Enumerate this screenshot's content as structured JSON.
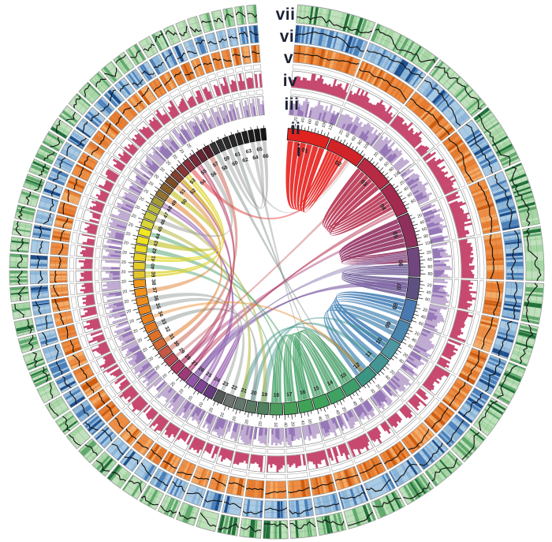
{
  "figure": {
    "description": "Circular genome synteny (circos) figure with seven concentric tracks and ribbon links",
    "ring_labels": {
      "i": "i",
      "ii": "ii",
      "iii": "iii",
      "iv": "iv",
      "v": "v",
      "vi": "vi",
      "vii": "vii"
    }
  },
  "chart_data": {
    "type": "circos-genome",
    "seed": 1234,
    "legend_position": "top-gap-radial-column",
    "tracks": [
      {
        "id": "i",
        "label": "i",
        "kind": "ideogram"
      },
      {
        "id": "ii",
        "label": "ii",
        "kind": "scale-ticks",
        "tick_mb": 10,
        "label_mb": 20,
        "tick_labels_seen": [
          20,
          40,
          60,
          80,
          100
        ]
      },
      {
        "id": "iii",
        "label": "iii",
        "kind": "histogram",
        "bar_color": "#9678b8",
        "base_color": "#c0abd2",
        "bg": "#ffffff"
      },
      {
        "id": "iv",
        "label": "iv",
        "kind": "histogram",
        "bar_color": "#c7496f",
        "base_color": "#c7496f",
        "bg": "#ffffff"
      },
      {
        "id": "v",
        "label": "v",
        "kind": "heatmap-line",
        "bg": "#ef8d42",
        "shades": [
          "#e2701f",
          "#f6b26f",
          "#cf5c10"
        ],
        "line_color": "#141414"
      },
      {
        "id": "vi",
        "label": "vi",
        "kind": "heatmap-line",
        "bg": "#a9cbe5",
        "shades": [
          "#74a6d1",
          "#3a73b4",
          "#1d4e8d"
        ],
        "line_color": "#141414"
      },
      {
        "id": "vii",
        "label": "vii",
        "kind": "heatmap-line",
        "bg": "#bfe1bc",
        "shades": [
          "#90cd90",
          "#4fa05f",
          "#20703a"
        ],
        "line_color": "#141414"
      }
    ],
    "chromosomes": [
      [
        "01",
        128,
        "#e0231f"
      ],
      [
        "02",
        112,
        "#d02429"
      ],
      [
        "03",
        104,
        "#b72a44"
      ],
      [
        "04",
        100,
        "#a32b50"
      ],
      [
        "05",
        102,
        "#8e2f5c"
      ],
      [
        "06",
        88,
        "#70467f"
      ],
      [
        "07",
        66,
        "#5e5181"
      ],
      [
        "08",
        66,
        "#4a78b0"
      ],
      [
        "09",
        64,
        "#4a86ae"
      ],
      [
        "10",
        56,
        "#4e96a2"
      ],
      [
        "11",
        52,
        "#439693"
      ],
      [
        "12",
        56,
        "#3c9582"
      ],
      [
        "13",
        50,
        "#3f9c6b"
      ],
      [
        "14",
        48,
        "#40a162"
      ],
      [
        "15",
        46,
        "#3fa35b"
      ],
      [
        "16",
        44,
        "#40a256"
      ],
      [
        "17",
        42,
        "#46a058"
      ],
      [
        "18",
        40,
        "#4b9b5e"
      ],
      [
        "19",
        34,
        "#4f7f5e"
      ],
      [
        "20",
        32,
        "#5b7a64"
      ],
      [
        "21",
        31,
        "#65766c"
      ],
      [
        "22",
        30,
        "#6d746f"
      ],
      [
        "23",
        28,
        "#535a57"
      ],
      [
        "24",
        30,
        "#663a7d"
      ],
      [
        "25",
        28,
        "#7f4496"
      ],
      [
        "26",
        27,
        "#9156a8"
      ],
      [
        "27",
        28,
        "#9c3a78"
      ],
      [
        "28",
        27,
        "#ae3a64"
      ],
      [
        "29",
        26,
        "#bb4752"
      ],
      [
        "30",
        26,
        "#c65843"
      ],
      [
        "31",
        26,
        "#d36832"
      ],
      [
        "32",
        25,
        "#dc7229"
      ],
      [
        "33",
        25,
        "#e27a24"
      ],
      [
        "34",
        25,
        "#e68121"
      ],
      [
        "35",
        24,
        "#ea871f"
      ],
      [
        "36",
        24,
        "#ed8d1d"
      ],
      [
        "37",
        24,
        "#f0921b"
      ],
      [
        "38",
        23,
        "#f29719"
      ],
      [
        "39",
        23,
        "#e2c52e"
      ],
      [
        "40",
        23,
        "#e5cc2b"
      ],
      [
        "41",
        23,
        "#e9d329"
      ],
      [
        "42",
        22,
        "#ecda27"
      ],
      [
        "43",
        22,
        "#efe125"
      ],
      [
        "44",
        22,
        "#f1e723"
      ],
      [
        "45",
        22,
        "#d9d437"
      ],
      [
        "46",
        22,
        "#cac83d"
      ],
      [
        "47",
        21,
        "#babb43"
      ],
      [
        "48",
        21,
        "#a59b3a"
      ],
      [
        "49",
        21,
        "#927232"
      ],
      [
        "50",
        21,
        "#875f2b"
      ],
      [
        "51",
        21,
        "#7c4c26"
      ],
      [
        "52",
        21,
        "#84402f"
      ],
      [
        "53",
        21,
        "#8a3737"
      ],
      [
        "54",
        21,
        "#8a2e3e"
      ],
      [
        "55",
        21,
        "#792938"
      ],
      [
        "56",
        20,
        "#672431"
      ],
      [
        "57",
        20,
        "#571f2b"
      ],
      [
        "58",
        17,
        "#333333"
      ],
      [
        "59",
        17,
        "#2f2f2f"
      ],
      [
        "60",
        16,
        "#2b2b2b"
      ],
      [
        "61",
        16,
        "#272727"
      ],
      [
        "62",
        16,
        "#232323"
      ],
      [
        "63",
        15,
        "#1f1f1f"
      ],
      [
        "64",
        15,
        "#1b1b1b"
      ],
      [
        "65",
        15,
        "#171717"
      ],
      [
        "66",
        15,
        "#141414"
      ]
    ],
    "links": [
      [
        "01",
        0.02,
        0.98,
        "02",
        0.03,
        0.55,
        "#e5201d",
        0.9,
        6
      ],
      [
        "02",
        0.62,
        0.72,
        "54",
        0.1,
        0.8,
        "#e5201d",
        0.45,
        1
      ],
      [
        "03",
        0.03,
        0.97,
        "04",
        0.03,
        0.72,
        "#b52d4d",
        0.88,
        6
      ],
      [
        "04",
        0.76,
        0.92,
        "27",
        0.15,
        0.75,
        "#b52d4d",
        0.5,
        2
      ],
      [
        "05",
        0.03,
        0.97,
        "06",
        0.04,
        0.5,
        "#8f3060",
        0.88,
        6
      ],
      [
        "05",
        0.2,
        0.3,
        "28",
        0.2,
        0.8,
        "#a83a74",
        0.45,
        1
      ],
      [
        "06",
        0.55,
        0.97,
        "07",
        0.05,
        0.95,
        "#6a5694",
        0.82,
        5
      ],
      [
        "07",
        0.3,
        0.6,
        "26",
        0.1,
        0.9,
        "#7d5ea4",
        0.6,
        2
      ],
      [
        "08",
        0.05,
        0.6,
        "10",
        0.1,
        0.95,
        "#3f7ab3",
        0.85,
        3
      ],
      [
        "08",
        0.65,
        0.95,
        "11",
        0.15,
        0.85,
        "#4583b8",
        0.7,
        2
      ],
      [
        "09",
        0.1,
        0.9,
        "12",
        0.1,
        0.9,
        "#4a88b4",
        0.72,
        3
      ],
      [
        "12",
        0.3,
        0.6,
        "21",
        0.2,
        0.8,
        "#3f948e",
        0.5,
        1
      ],
      [
        "10",
        0.3,
        0.5,
        "19",
        0.2,
        0.8,
        "#3f948e",
        0.45,
        1
      ],
      [
        "11",
        0.3,
        0.6,
        "20",
        0.2,
        0.7,
        "#3f948e",
        0.5,
        1
      ],
      [
        "13",
        0.05,
        0.95,
        "16",
        0.05,
        0.95,
        "#3f9e63",
        0.8,
        5
      ],
      [
        "14",
        0.08,
        0.92,
        "17",
        0.08,
        0.92,
        "#3f9e63",
        0.75,
        4
      ],
      [
        "15",
        0.08,
        0.92,
        "18",
        0.08,
        0.9,
        "#3f9e63",
        0.75,
        4
      ],
      [
        "16",
        0.35,
        0.55,
        "42",
        0.15,
        0.85,
        "#4aa06a",
        0.5,
        1
      ],
      [
        "17",
        0.35,
        0.5,
        "44",
        0.2,
        0.8,
        "#4aa06a",
        0.5,
        1
      ],
      [
        "18",
        0.45,
        0.6,
        "40",
        0.2,
        0.8,
        "#4aa06a",
        0.45,
        1
      ],
      [
        "13",
        0.45,
        0.52,
        "58",
        0.1,
        0.9,
        "#6a7a70",
        0.4,
        1
      ],
      [
        "14",
        0.5,
        0.56,
        "61",
        0.1,
        0.9,
        "#6a7a70",
        0.4,
        1
      ],
      [
        "15",
        0.5,
        0.55,
        "64",
        0.1,
        0.9,
        "#8a8a8a",
        0.4,
        1
      ],
      [
        "19",
        0.3,
        0.7,
        "47",
        0.2,
        0.8,
        "#b0b344",
        0.5,
        1
      ],
      [
        "20",
        0.3,
        0.7,
        "33",
        0.2,
        0.8,
        "#8e9894",
        0.5,
        1
      ],
      [
        "21",
        0.3,
        0.7,
        "45",
        0.2,
        0.8,
        "#b5b73e",
        0.55,
        1
      ],
      [
        "22",
        0.3,
        0.7,
        "36",
        0.2,
        0.8,
        "#98a09c",
        0.5,
        1
      ],
      [
        "23",
        0.3,
        0.7,
        "35",
        0.2,
        0.8,
        "#98a09c",
        0.5,
        1
      ],
      [
        "24",
        0.1,
        0.9,
        "26",
        0.15,
        0.9,
        "#8d4fa8",
        0.7,
        3
      ],
      [
        "25",
        0.15,
        0.85,
        "48",
        0.1,
        0.9,
        "#9055aa",
        0.6,
        2
      ],
      [
        "26",
        0.3,
        0.8,
        "06",
        0.12,
        0.4,
        "#a393c2",
        0.55,
        3
      ],
      [
        "27",
        0.15,
        0.7,
        "52",
        0.1,
        0.9,
        "#a83a74",
        0.6,
        2
      ],
      [
        "28",
        0.2,
        0.8,
        "55",
        0.1,
        0.9,
        "#b43a5e",
        0.6,
        2
      ],
      [
        "29",
        0.25,
        0.6,
        "03",
        0.35,
        0.45,
        "#c04a50",
        0.4,
        1
      ],
      [
        "30",
        0.2,
        0.8,
        "57",
        0.1,
        0.9,
        "#c65843",
        0.5,
        1
      ],
      [
        "31",
        0.2,
        0.8,
        "49",
        0.1,
        0.9,
        "#e08030",
        0.55,
        1
      ],
      [
        "34",
        0.3,
        0.7,
        "12",
        0.35,
        0.55,
        "#e8872a",
        0.45,
        1
      ],
      [
        "37",
        0.2,
        0.8,
        "51",
        0.1,
        0.9,
        "#e08030",
        0.5,
        1
      ],
      [
        "39",
        0.1,
        0.9,
        "53",
        0.1,
        0.9,
        "#ddd32e",
        0.75,
        2
      ],
      [
        "41",
        0.1,
        0.9,
        "52",
        0.3,
        0.9,
        "#e3d92c",
        0.75,
        2
      ],
      [
        "43",
        0.1,
        0.9,
        "50",
        0.1,
        0.9,
        "#c9c83c",
        0.7,
        1
      ],
      [
        "46",
        0.2,
        0.8,
        "56",
        0.1,
        0.9,
        "#9b9b9b",
        0.5,
        1
      ],
      [
        "59",
        0.1,
        0.9,
        "65",
        0.1,
        0.9,
        "#9b9b9b",
        0.45,
        1
      ],
      [
        "60",
        0.1,
        0.9,
        "66",
        0.1,
        0.9,
        "#8a8a8a",
        0.45,
        1
      ],
      [
        "62",
        0.1,
        0.9,
        "02",
        0.75,
        0.78,
        "#9b9b9b",
        0.4,
        1
      ]
    ]
  }
}
